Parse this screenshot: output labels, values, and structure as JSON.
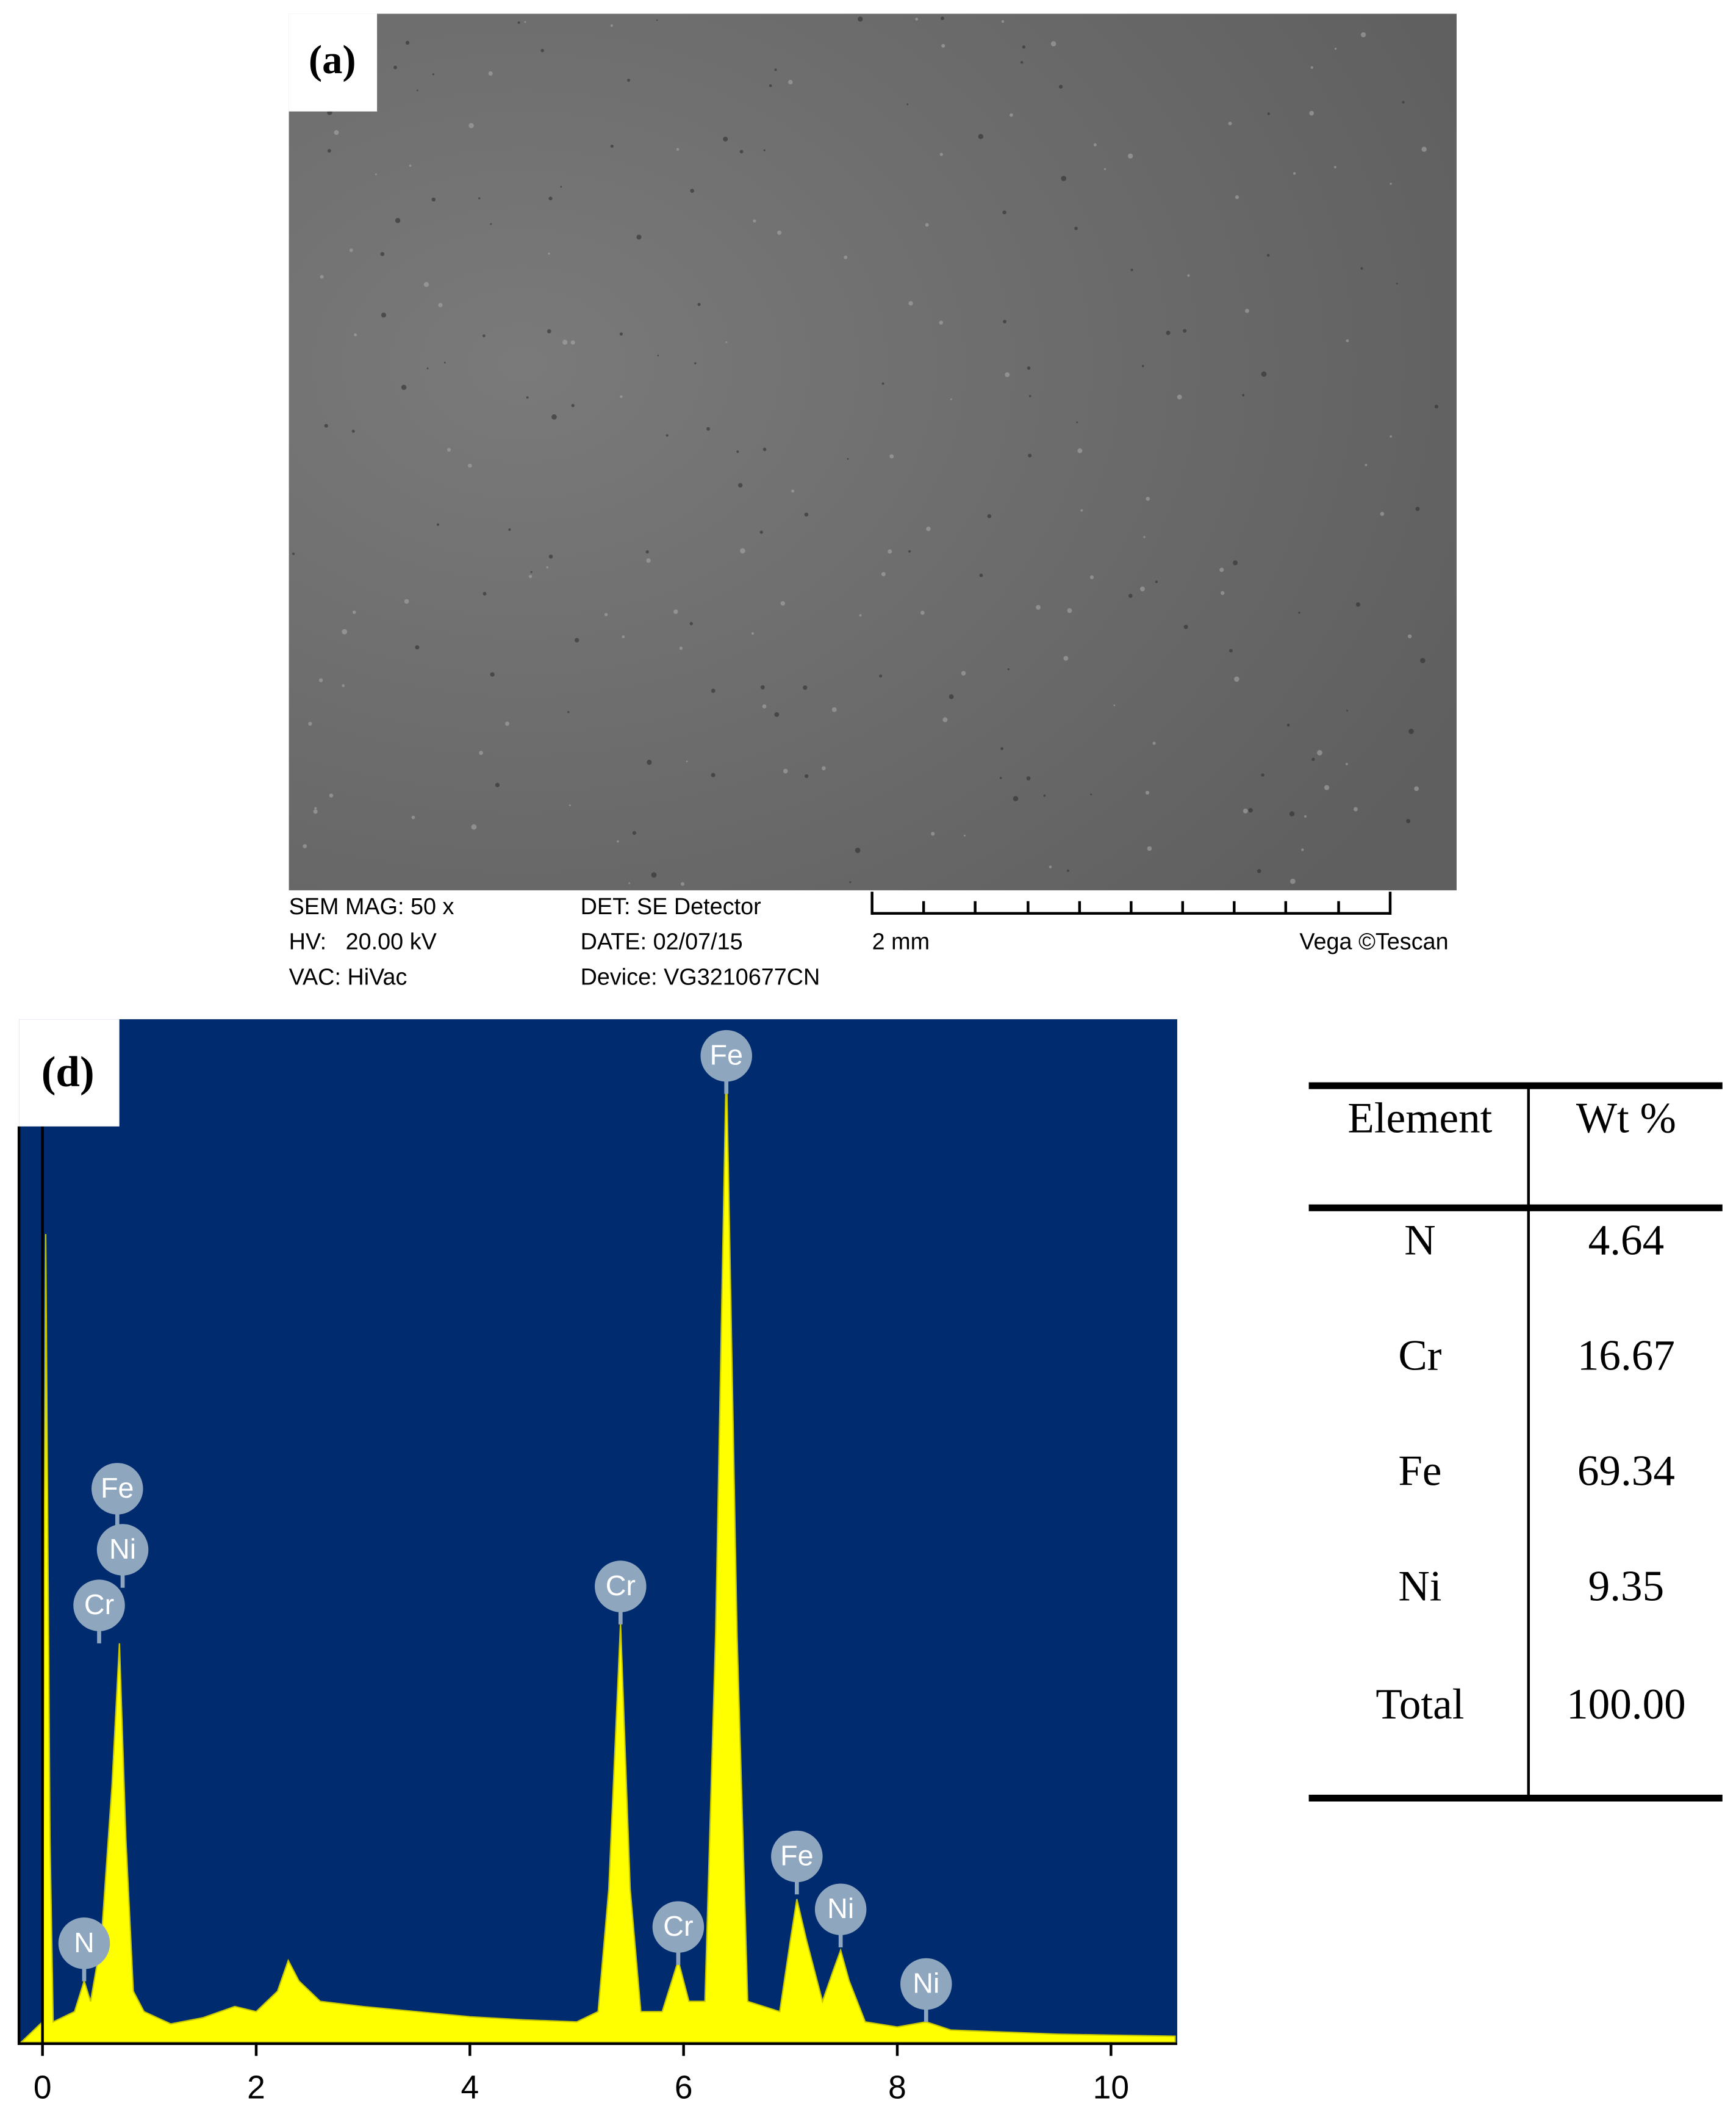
{
  "panel_a": {
    "label": "(a)",
    "info_left": [
      "SEM MAG: 50 x",
      "HV:   20.00 kV",
      "VAC: HiVac"
    ],
    "info_mid": [
      "DET: SE Detector",
      "DATE: 02/07/15",
      "Device: VG3210677CN"
    ],
    "scale_label": "2 mm",
    "brand": "Vega ©Tescan"
  },
  "chart_data": {
    "type": "area",
    "label": "(d)",
    "x": [
      -0.2,
      0.0,
      0.03,
      0.07,
      0.1,
      0.3,
      0.39,
      0.45,
      0.55,
      0.65,
      0.72,
      0.78,
      0.85,
      0.95,
      1.2,
      1.5,
      1.8,
      2.0,
      2.2,
      2.3,
      2.4,
      2.6,
      3.0,
      3.5,
      4.0,
      4.5,
      5.0,
      5.2,
      5.3,
      5.41,
      5.5,
      5.6,
      5.8,
      5.95,
      6.05,
      6.2,
      6.3,
      6.4,
      6.5,
      6.6,
      6.9,
      7.0,
      7.06,
      7.15,
      7.3,
      7.4,
      7.47,
      7.55,
      7.7,
      8.0,
      8.27,
      8.5,
      9.0,
      9.5,
      10.0,
      10.6
    ],
    "values": [
      0,
      2,
      79,
      20,
      2,
      3,
      6,
      4,
      10,
      25,
      39,
      20,
      5,
      3,
      1.8,
      2.4,
      3.5,
      3,
      5,
      8,
      6,
      4,
      3.5,
      3,
      2.5,
      2.2,
      2,
      3,
      15,
      41,
      15,
      3,
      3,
      8,
      4,
      4,
      40,
      96,
      40,
      4,
      3,
      10,
      14,
      10,
      4,
      7,
      9,
      6,
      2,
      1.5,
      2,
      1.2,
      1,
      0.8,
      0.7,
      0.6
    ],
    "xlim": [
      -0.22,
      10.62
    ],
    "ylim": [
      0,
      100
    ],
    "xticks": [
      0,
      2,
      4,
      6,
      8,
      10
    ],
    "color": "#ffff00",
    "background": "#002b6e",
    "peaks": [
      {
        "label": "Fe",
        "x": 6.4
      },
      {
        "label": "Fe",
        "x": 0.7
      },
      {
        "label": "Ni",
        "x": 0.75
      },
      {
        "label": "Cr",
        "x": 0.53
      },
      {
        "label": "Cr",
        "x": 5.41
      },
      {
        "label": "N",
        "x": 0.39
      },
      {
        "label": "Cr",
        "x": 5.95
      },
      {
        "label": "Fe",
        "x": 7.06
      },
      {
        "label": "Ni",
        "x": 7.47
      },
      {
        "label": "Ni",
        "x": 8.27
      }
    ]
  },
  "table": {
    "header": [
      "Element",
      "Wt %"
    ],
    "rows": [
      [
        "N",
        "4.64"
      ],
      [
        "Cr",
        "16.67"
      ],
      [
        "Fe",
        "69.34"
      ],
      [
        "Ni",
        "9.35"
      ],
      [
        "Total",
        "100.00"
      ]
    ]
  }
}
